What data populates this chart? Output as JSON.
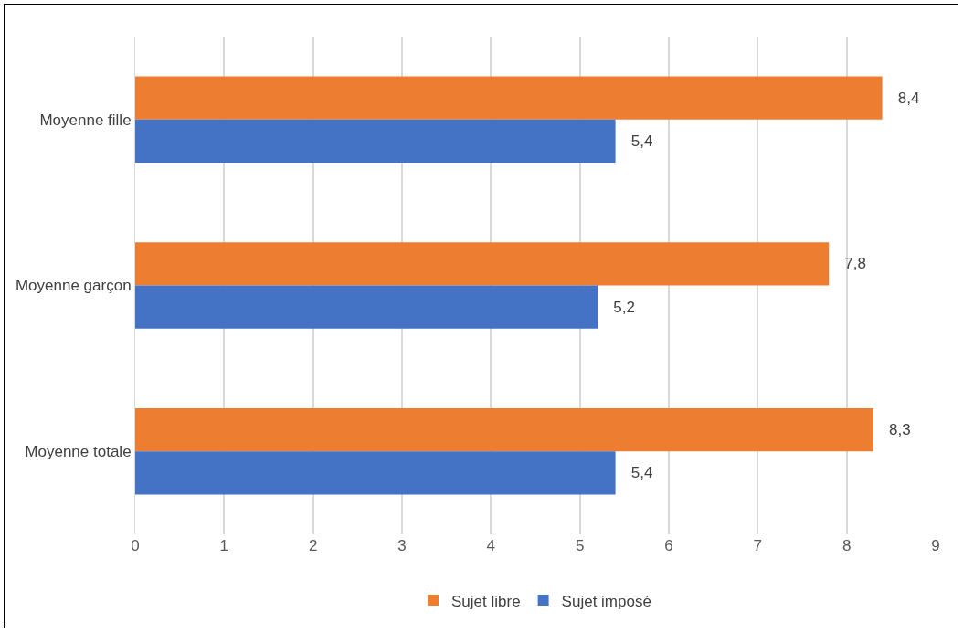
{
  "chart_data": {
    "type": "bar",
    "orientation": "horizontal",
    "categories": [
      "Moyenne fille",
      "Moyenne garçon",
      "Moyenne totale"
    ],
    "series": [
      {
        "name": "Sujet libre",
        "color": "#ed7d31",
        "values": [
          8.4,
          7.8,
          8.3
        ],
        "value_labels": [
          "8,4",
          "7,8",
          "8,3"
        ]
      },
      {
        "name": "Sujet imposé",
        "color": "#4472c4",
        "values": [
          5.4,
          5.2,
          5.4
        ],
        "value_labels": [
          "5,4",
          "5,2",
          "5,4"
        ]
      }
    ],
    "xlim": [
      0,
      9
    ],
    "xticks": [
      0,
      1,
      2,
      3,
      4,
      5,
      6,
      7,
      8,
      9
    ],
    "grid": "x",
    "legend": "bottom"
  }
}
